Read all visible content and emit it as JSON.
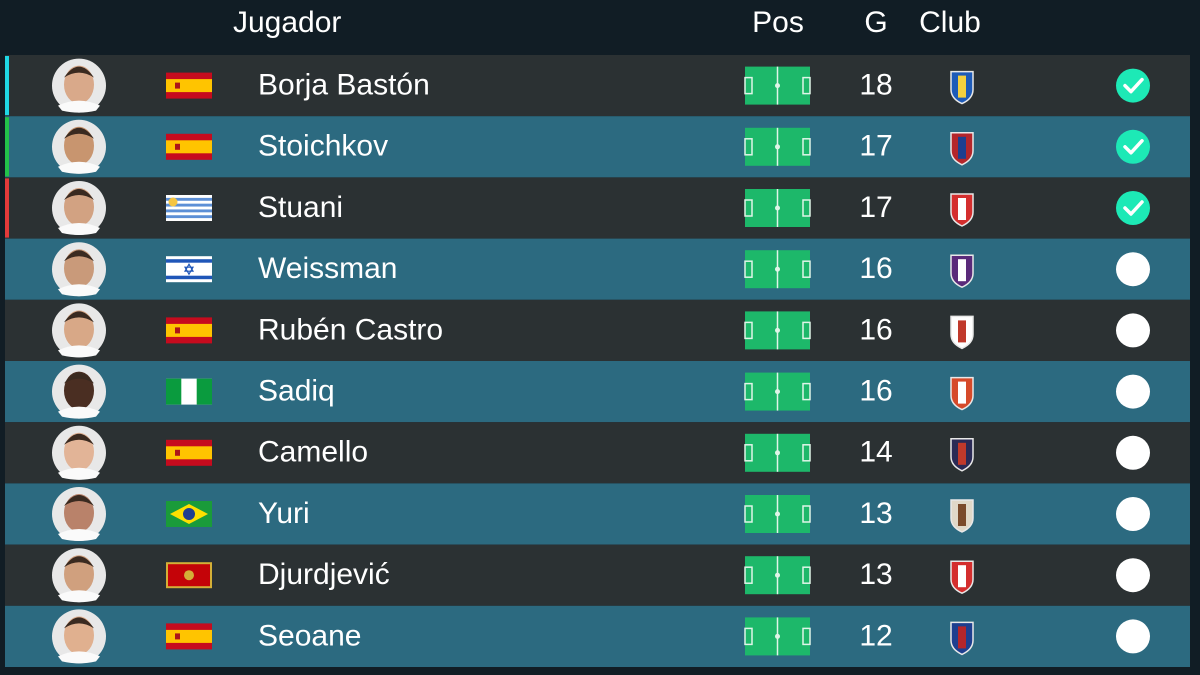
{
  "header": {
    "player": "Jugador",
    "position": "Pos",
    "goals": "G",
    "club": "Club"
  },
  "table": {
    "rows": [
      {
        "name": "Borja Bastón",
        "goals": "18",
        "checked": true,
        "marker": "#1fd8e6"
      },
      {
        "name": "Stoichkov",
        "goals": "17",
        "checked": true,
        "marker": "#22c24a"
      },
      {
        "name": "Stuani",
        "goals": "17",
        "checked": true,
        "marker": "#e23a3a"
      },
      {
        "name": "Weissman",
        "goals": "16",
        "checked": false
      },
      {
        "name": "Rubén Castro",
        "goals": "16",
        "checked": false
      },
      {
        "name": "Sadiq",
        "goals": "16",
        "checked": false
      },
      {
        "name": "Camello",
        "goals": "14",
        "checked": false
      },
      {
        "name": "Yuri",
        "goals": "13",
        "checked": false
      },
      {
        "name": "Djurdjević",
        "goals": "13",
        "checked": false
      },
      {
        "name": "Seoane",
        "goals": "12",
        "checked": false
      }
    ]
  }
}
